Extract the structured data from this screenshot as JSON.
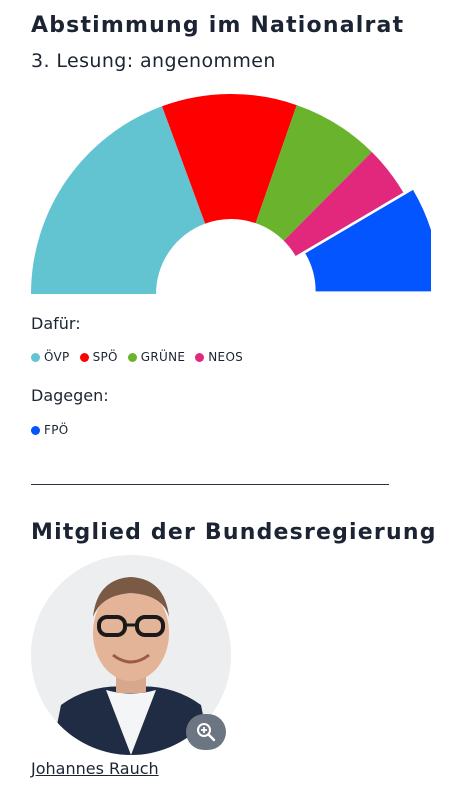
{
  "vote": {
    "title": "Abstimmung im Nationalrat",
    "subtitle": "3. Lesung: angenommen",
    "in_favor_label": "Dafür:",
    "against_label": "Dagegen:"
  },
  "chart_data": {
    "type": "pie",
    "title": "Abstimmung im Nationalrat",
    "subtitle": "3. Lesung: angenommen",
    "series": [
      {
        "name": "ÖVP",
        "values": [
          71
        ],
        "color": "#62c3d1",
        "group": "Dafür"
      },
      {
        "name": "SPÖ",
        "values": [
          40
        ],
        "color": "#fe0000",
        "group": "Dafür"
      },
      {
        "name": "GRÜNE",
        "values": [
          26
        ],
        "color": "#6ab42d",
        "group": "Dafür"
      },
      {
        "name": "NEOS",
        "values": [
          15
        ],
        "color": "#e2287d",
        "group": "Dafür"
      },
      {
        "name": "FPÖ",
        "values": [
          31
        ],
        "color": "#0255ff",
        "group": "Dagegen"
      }
    ]
  },
  "legend": {
    "in_favor": [
      {
        "label": "ÖVP",
        "color": "#62c3d1"
      },
      {
        "label": "SPÖ",
        "color": "#fe0000"
      },
      {
        "label": "GRÜNE",
        "color": "#6ab42d"
      },
      {
        "label": "NEOS",
        "color": "#e2287d"
      }
    ],
    "against": [
      {
        "label": "FPÖ",
        "color": "#0255ff"
      }
    ]
  },
  "government": {
    "title": "Mitglied der Bundesregierung",
    "person_name": "Johannes Rauch",
    "zoom_icon": "zoom-in-icon"
  }
}
